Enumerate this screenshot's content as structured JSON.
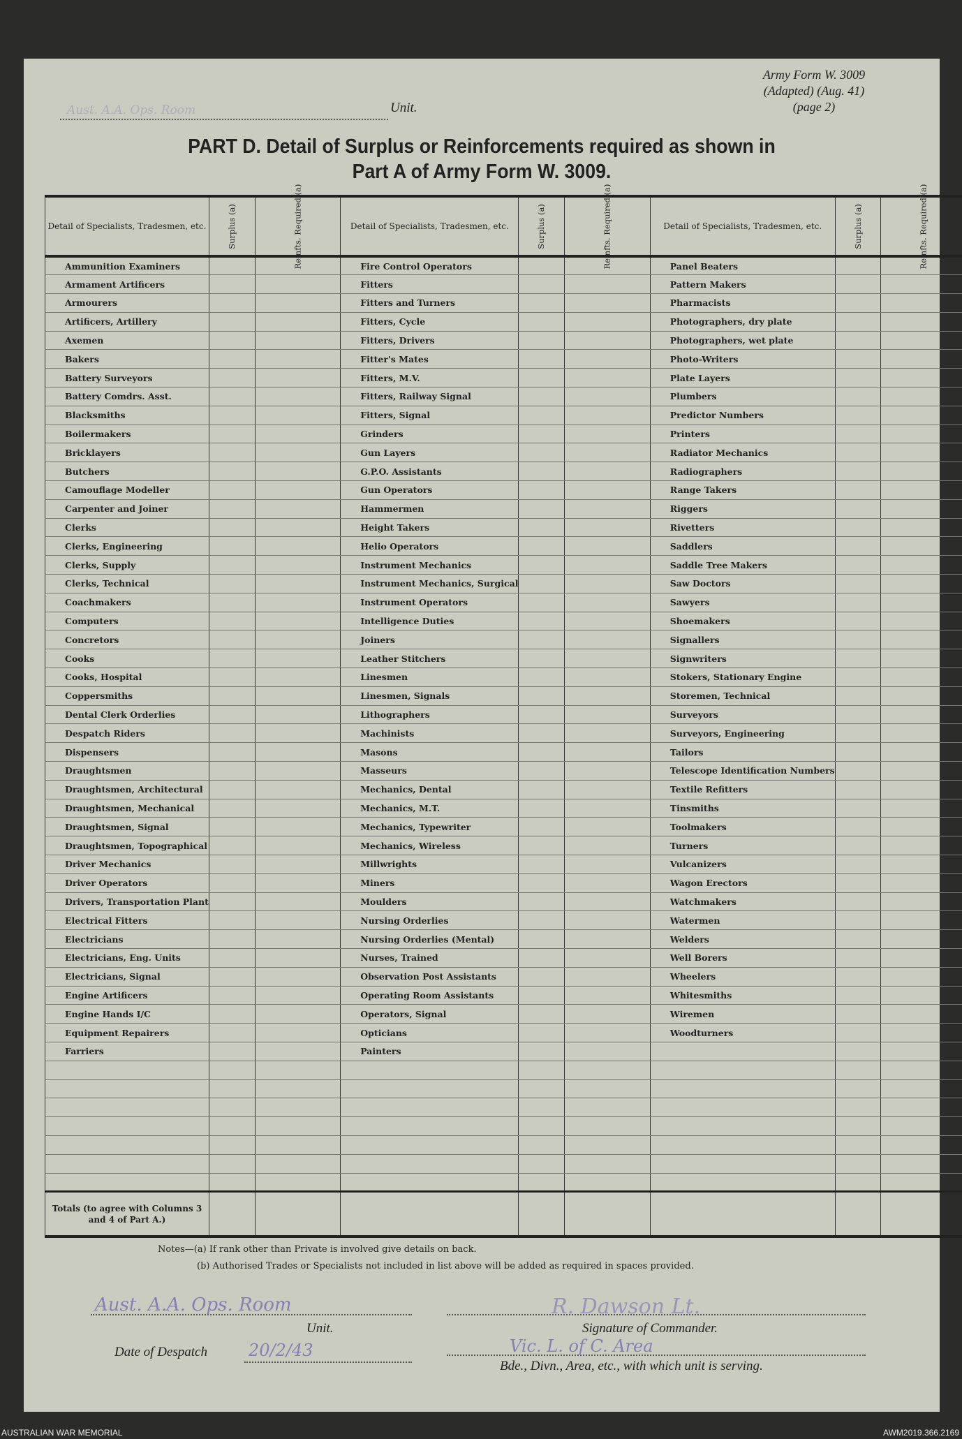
{
  "form_ref": {
    "line1": "Army Form W. 3009",
    "line2": "(Adapted) (Aug. 41)",
    "line3": "(page 2)"
  },
  "top_unit": {
    "handwritten": "Aust. A.A. Ops. Room",
    "label": "Unit."
  },
  "title": {
    "line1": "PART D.  Detail of Surplus or Reinforcements required as shown in",
    "line2": "Part A of Army Form W. 3009."
  },
  "table": {
    "headers": {
      "detail": "Detail of Specialists, Tradesmen, etc.",
      "surplus": "Surplus (a)",
      "reinfts": "Reinfts. Required (a)"
    },
    "columns": [
      [
        "Ammunition Examiners",
        "Armament Artificers",
        "Armourers",
        "Artificers, Artillery",
        "Axemen",
        "Bakers",
        "Battery Surveyors",
        "Battery Comdrs. Asst.",
        "Blacksmiths",
        "Boilermakers",
        "Bricklayers",
        "Butchers",
        "Camouflage Modeller",
        "Carpenter and Joiner",
        "Clerks",
        "Clerks, Engineering",
        "Clerks, Supply",
        "Clerks, Technical",
        "Coachmakers",
        "Computers",
        "Concretors",
        "Cooks",
        "Cooks, Hospital",
        "Coppersmiths",
        "Dental Clerk Orderlies",
        "Despatch Riders",
        "Dispensers",
        "Draughtsmen",
        "Draughtsmen, Architectural",
        "Draughtsmen, Mechanical",
        "Draughtsmen, Signal",
        "Draughtsmen, Topographical",
        "Driver Mechanics",
        "Driver Operators",
        "Drivers, Transportation Plant",
        "Electrical Fitters",
        "Electricians",
        "Electricians, Eng. Units",
        "Electricians, Signal",
        "Engine Artificers",
        "Engine Hands I/C",
        "Equipment Repairers",
        "Farriers"
      ],
      [
        "Fire Control Operators",
        "Fitters",
        "Fitters and Turners",
        "Fitters, Cycle",
        "Fitters, Drivers",
        "Fitter's Mates",
        "Fitters, M.V.",
        "Fitters, Railway Signal",
        "Fitters, Signal",
        "Grinders",
        "Gun Layers",
        "G.P.O. Assistants",
        "Gun Operators",
        "Hammermen",
        "Height Takers",
        "Helio Operators",
        "Instrument Mechanics",
        "Instrument Mechanics, Surgical",
        "Instrument Operators",
        "Intelligence Duties",
        "Joiners",
        "Leather Stitchers",
        "Linesmen",
        "Linesmen, Signals",
        "Lithographers",
        "Machinists",
        "Masons",
        "Masseurs",
        "Mechanics, Dental",
        "Mechanics, M.T.",
        "Mechanics, Typewriter",
        "Mechanics, Wireless",
        "Millwrights",
        "Miners",
        "Moulders",
        "Nursing Orderlies",
        "Nursing Orderlies (Mental)",
        "Nurses, Trained",
        "Observation Post Assistants",
        "Operating Room Assistants",
        "Operators, Signal",
        "Opticians",
        "Painters"
      ],
      [
        "Panel Beaters",
        "Pattern Makers",
        "Pharmacists",
        "Photographers, dry plate",
        "Photographers, wet plate",
        "Photo-Writers",
        "Plate Layers",
        "Plumbers",
        "Predictor Numbers",
        "Printers",
        "Radiator Mechanics",
        "Radiographers",
        "Range Takers",
        "Riggers",
        "Rivetters",
        "Saddlers",
        "Saddle Tree Makers",
        "Saw Doctors",
        "Sawyers",
        "Shoemakers",
        "Signallers",
        "Signwriters",
        "Stokers, Stationary Engine",
        "Storemen, Technical",
        "Surveyors",
        "Surveyors, Engineering",
        "Tailors",
        "Telescope Identification Numbers",
        "Textile Refitters",
        "Tinsmiths",
        "Toolmakers",
        "Turners",
        "Vulcanizers",
        "Wagon Erectors",
        "Watchmakers",
        "Watermen",
        "Welders",
        "Well Borers",
        "Wheelers",
        "Whitesmiths",
        "Wiremen",
        "Woodturners"
      ]
    ],
    "totals_label": "Totals (to agree with Columns 3 and 4 of Part A.)"
  },
  "notes": {
    "a": "Notes—(a) If rank other than Private is involved give details on back.",
    "b": "(b) Authorised Trades or Specialists not included in list above will be added as required in spaces provided."
  },
  "signoff": {
    "unit_handwritten": "Aust. A.A. Ops. Room",
    "unit_label": "Unit.",
    "signature_label": "Signature of Commander.",
    "date_label": "Date of Despatch",
    "date_handwritten": "20/2/43",
    "formation_handwritten": "Vic. L. of C. Area",
    "formation_label": "Bde., Divn., Area, etc., with which unit is serving."
  },
  "footer": {
    "left": "AUSTRALIAN WAR MEMORIAL",
    "right": "AWM2019.366.2169"
  }
}
